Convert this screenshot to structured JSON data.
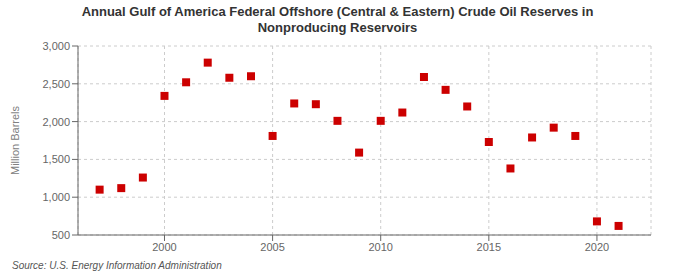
{
  "chart_data": {
    "type": "scatter",
    "title": "Annual Gulf of America Federal Offshore (Central & Eastern) Crude Oil Reserves in\nNonproducing Reservoirs",
    "ylabel": "Million Barrels",
    "annotations": [
      "Source: U.S. Energy Information Administration"
    ],
    "x": [
      1997,
      1998,
      1999,
      2000,
      2001,
      2002,
      2003,
      2004,
      2005,
      2006,
      2007,
      2008,
      2009,
      2010,
      2011,
      2012,
      2013,
      2014,
      2015,
      2016,
      2017,
      2018,
      2019,
      2020,
      2021
    ],
    "values": [
      1100,
      1120,
      1260,
      2340,
      2520,
      2780,
      2580,
      2600,
      1810,
      2240,
      2230,
      2010,
      1590,
      2010,
      2120,
      2590,
      2420,
      2200,
      1730,
      1380,
      1790,
      1920,
      1810,
      680,
      620
    ],
    "color": "#cc0000",
    "marker": "square",
    "xlim": [
      1996,
      2022.5
    ],
    "xticks": [
      2000,
      2005,
      2010,
      2015,
      2020
    ],
    "ylim": [
      500,
      3000
    ],
    "yticks": [
      500,
      {
        "value": 1000,
        "label": "1,000"
      },
      {
        "value": 1500,
        "label": "1,500"
      },
      {
        "value": 2000,
        "label": "2,000"
      },
      {
        "value": 2500,
        "label": "2,500"
      },
      {
        "value": 3000,
        "label": "3,000"
      }
    ],
    "grid": true
  }
}
